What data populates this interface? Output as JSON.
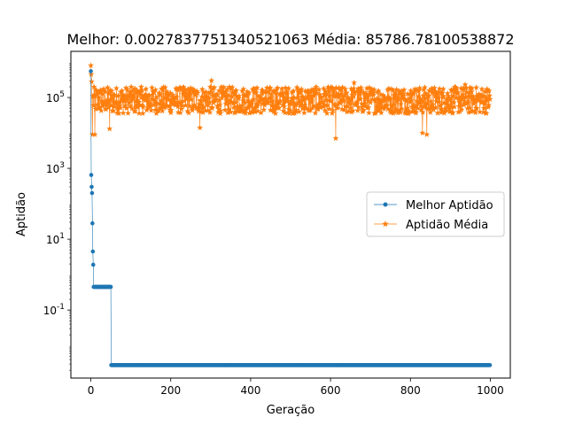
{
  "figure": {
    "title": "Melhor: 0.0027837751340521063 Média: 85786.78100538872"
  },
  "chart_data": {
    "type": "line",
    "title": "Melhor: 0.0027837751340521063 Média: 85786.78100538872",
    "xlabel": "Geração",
    "ylabel": "Aptidão",
    "x_range": [
      -50,
      1050
    ],
    "y_scale": "log",
    "y_range": [
      0.0012,
      2000000
    ],
    "x_ticks": [
      0,
      200,
      400,
      600,
      800,
      1000
    ],
    "x_tick_labels": [
      "0",
      "200",
      "400",
      "600",
      "800",
      "1000"
    ],
    "y_ticks": [
      0.1,
      10,
      1000,
      100000
    ],
    "y_tick_labels": [
      "10^-1",
      "10^1",
      "10^3",
      "10^5"
    ],
    "grid": false,
    "legend_position": "center-right",
    "series": [
      {
        "name": "Melhor Aptidão",
        "marker": "circle",
        "color": "#1f77b4",
        "segments": [
          {
            "x": [
              0,
              1,
              2,
              3,
              4,
              5,
              6
            ],
            "y": [
              550000,
              650,
              300,
              200,
              28,
              4.5,
              1.9
            ]
          },
          {
            "x_range": [
              7,
              50
            ],
            "y": 0.45
          },
          {
            "x_range": [
              51,
              999
            ],
            "y": 0.0027837751340521063
          }
        ]
      },
      {
        "name": "Aptidão Média",
        "marker": "star",
        "color": "#ff7f0e",
        "level": 85786.78100538872,
        "noise_range": [
          35000,
          200000
        ],
        "initial": [
          {
            "x": 0,
            "y": 800000
          },
          {
            "x": 1,
            "y": 450000
          },
          {
            "x": 2,
            "y": 280000
          },
          {
            "x": 4,
            "y": 9000
          }
        ],
        "outliers": [
          {
            "x": 10,
            "y": 9000
          },
          {
            "x": 47,
            "y": 13000
          },
          {
            "x": 273,
            "y": 14000
          },
          {
            "x": 613,
            "y": 7000
          },
          {
            "x": 830,
            "y": 10000
          },
          {
            "x": 841,
            "y": 9000
          },
          {
            "x": 302,
            "y": 300000
          },
          {
            "x": 659,
            "y": 260000
          },
          {
            "x": 937,
            "y": 230000
          }
        ]
      }
    ]
  }
}
